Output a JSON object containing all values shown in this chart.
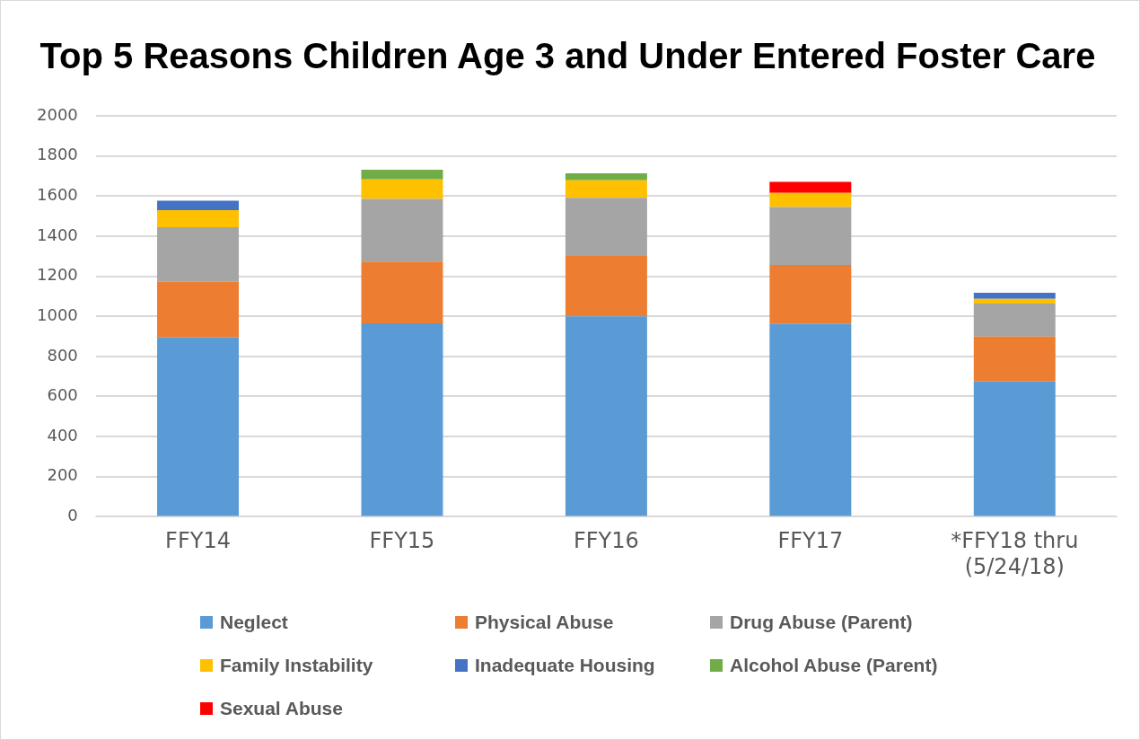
{
  "chart_data": {
    "type": "bar",
    "title": "Top 5 Reasons Children Age 3 and Under Entered Foster Care",
    "categories": [
      "FFY14",
      "FFY15",
      "FFY16",
      "FFY17",
      "*FFY18 thru (5/24/18)"
    ],
    "stacked": true,
    "ylim": [
      0,
      2000
    ],
    "yticks": [
      0,
      200,
      400,
      600,
      800,
      1000,
      1200,
      1400,
      1600,
      1800,
      2000
    ],
    "grid": "y",
    "legend": "bottom",
    "series": [
      {
        "name": "Neglect",
        "color": "#5b9bd5",
        "values": [
          895,
          965,
          1000,
          964,
          675
        ]
      },
      {
        "name": "Physical Abuse",
        "color": "#ed7d31",
        "values": [
          277,
          308,
          301,
          292,
          224
        ]
      },
      {
        "name": "Drug Abuse (Parent)",
        "color": "#a5a5a5",
        "values": [
          273,
          313,
          290,
          289,
          165
        ]
      },
      {
        "name": "Family Instability",
        "color": "#ffc000",
        "values": [
          85,
          97,
          87,
          71,
          23
        ]
      },
      {
        "name": "Inadequate Housing",
        "color": "#4472c4",
        "values": [
          47,
          null,
          null,
          null,
          30
        ]
      },
      {
        "name": "Alcohol Abuse (Parent)",
        "color": "#70ad47",
        "values": [
          null,
          48,
          35,
          null,
          null
        ]
      },
      {
        "name": "Sexual Abuse",
        "color": "#ff0000",
        "values": [
          null,
          null,
          null,
          55,
          null
        ]
      }
    ]
  }
}
